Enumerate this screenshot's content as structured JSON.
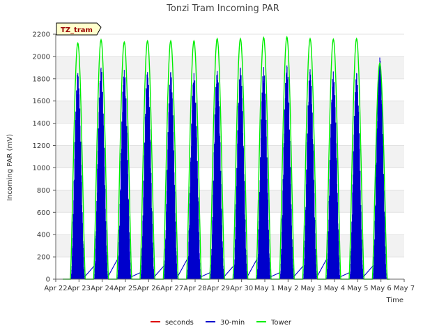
{
  "chart_data": {
    "type": "line",
    "title": "Tonzi Tram Incoming PAR",
    "xlabel": "Time",
    "ylabel": "Incoming PAR (mV)",
    "ylim": [
      0,
      2200
    ],
    "yticks": [
      0,
      200,
      400,
      600,
      800,
      1000,
      1200,
      1400,
      1600,
      1800,
      2000,
      2200
    ],
    "xlim": [
      0,
      15
    ],
    "x_tick_labels": [
      "Apr 22",
      "Apr 23",
      "Apr 24",
      "Apr 25",
      "Apr 26",
      "Apr 27",
      "Apr 28",
      "Apr 29",
      "Apr 30",
      "May 1",
      "May 2",
      "May 3",
      "May 4",
      "May 5",
      "May 6",
      "May 7"
    ],
    "grid": "horizontal bands",
    "legend_position": "bottom",
    "site_tag": "TZ_tram",
    "colors": {
      "seconds": "#dd0000",
      "30-min": "#0000cc",
      "Tower": "#00ee00"
    },
    "daily_peaks": {
      "days": [
        "Apr 22",
        "Apr 23",
        "Apr 24",
        "Apr 25",
        "Apr 26",
        "Apr 27",
        "Apr 28",
        "Apr 29",
        "Apr 30",
        "May 1",
        "May 2",
        "May 3",
        "May 4",
        "May 5"
      ],
      "tower": [
        2120,
        2150,
        2130,
        2140,
        2140,
        2140,
        2160,
        2160,
        2170,
        2175,
        2160,
        2155,
        2160,
        1940
      ],
      "thirty_min": [
        1850,
        1900,
        1880,
        1860,
        1860,
        1850,
        1870,
        1900,
        1905,
        1920,
        1885,
        1865,
        1850,
        1990
      ]
    },
    "series": [
      {
        "name": "seconds",
        "values": []
      },
      {
        "name": "30-min"
      },
      {
        "name": "Tower"
      }
    ]
  }
}
